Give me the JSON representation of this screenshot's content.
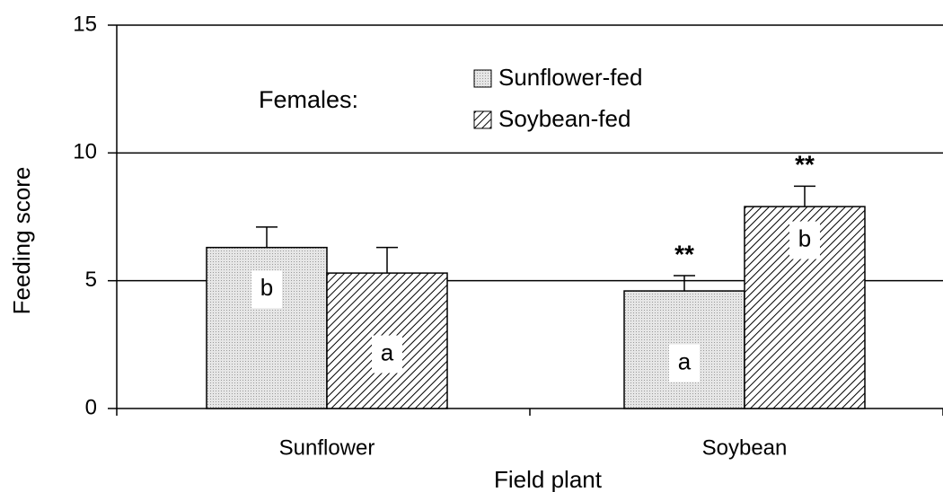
{
  "chart_data": {
    "type": "bar",
    "title": "Females:",
    "x_label": "Field plant",
    "y_label": "Feeding score",
    "categories": [
      "Sunflower",
      "Soybean"
    ],
    "series": [
      {
        "name": "Sunflower-fed",
        "color": "#d0d0d0",
        "pattern": "dots",
        "values": [
          6.3,
          4.6
        ],
        "errors": [
          0.8,
          0.6
        ],
        "letters": [
          "b",
          "a"
        ],
        "significance": [
          null,
          "**"
        ]
      },
      {
        "name": "Soybean-fed",
        "color": "#000000",
        "pattern": "hatch",
        "values": [
          5.3,
          7.9
        ],
        "errors": [
          1.0,
          0.8
        ],
        "letters": [
          "a",
          "b"
        ],
        "significance": [
          null,
          "**"
        ]
      }
    ],
    "ylim": [
      0,
      15
    ],
    "yticks": [
      0,
      5,
      10,
      15
    ],
    "grid": true
  }
}
